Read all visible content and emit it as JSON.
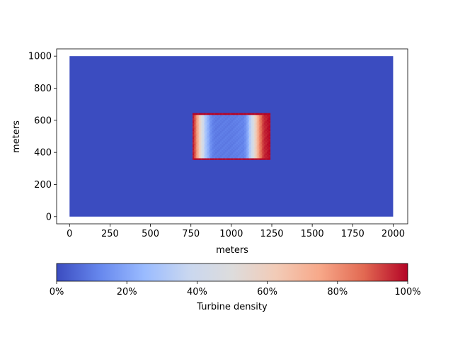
{
  "chart_data": {
    "type": "heatmap",
    "xlabel": "meters",
    "ylabel": "meters",
    "xlim": [
      -80,
      2090
    ],
    "ylim": [
      -45,
      1045
    ],
    "xticks": [
      0,
      250,
      500,
      750,
      1000,
      1250,
      1500,
      1750,
      2000
    ],
    "yticks": [
      0,
      200,
      400,
      600,
      800,
      1000
    ],
    "domain": {
      "x": [
        0,
        2000
      ],
      "y": [
        0,
        1000
      ]
    },
    "background_density": 0.0,
    "farm_region": {
      "x": [
        760,
        1240
      ],
      "y": [
        355,
        645
      ]
    },
    "density_profile_x": [
      [
        760,
        1.0
      ],
      [
        775,
        0.9
      ],
      [
        790,
        0.75
      ],
      [
        805,
        0.6
      ],
      [
        820,
        0.45
      ],
      [
        840,
        0.3
      ],
      [
        860,
        0.2
      ],
      [
        880,
        0.12
      ],
      [
        900,
        0.1
      ],
      [
        1000,
        0.1
      ],
      [
        1080,
        0.12
      ],
      [
        1100,
        0.2
      ],
      [
        1120,
        0.35
      ],
      [
        1140,
        0.5
      ],
      [
        1160,
        0.7
      ],
      [
        1180,
        0.85
      ],
      [
        1200,
        0.95
      ],
      [
        1240,
        1.0
      ]
    ],
    "edge_density": 1.0,
    "colormap": "coolwarm",
    "colormap_stops": [
      "#3b4cc0",
      "#6788ee",
      "#9abbff",
      "#c9d7f0",
      "#dddcdc",
      "#f2cbb7",
      "#f7a889",
      "#e26952",
      "#b40426"
    ],
    "colorbar": {
      "label": "Turbine density",
      "ticks": [
        "0%",
        "20%",
        "40%",
        "60%",
        "80%",
        "100%"
      ],
      "range": [
        0,
        1
      ],
      "orientation": "horizontal"
    }
  }
}
